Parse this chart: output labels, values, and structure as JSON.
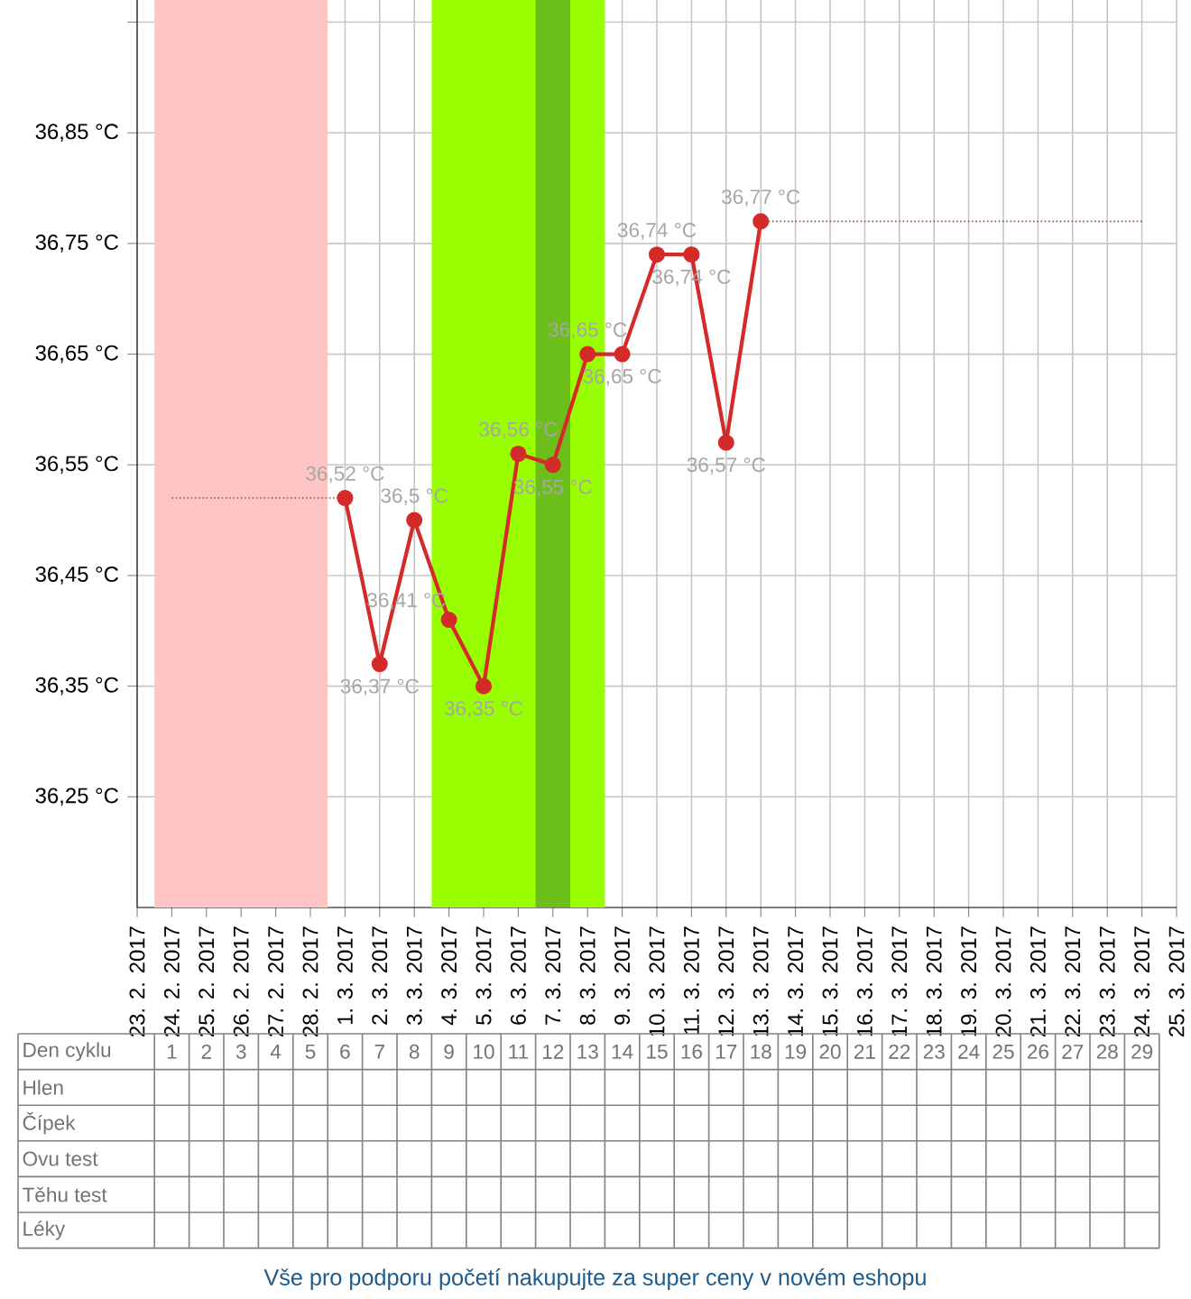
{
  "chart_data": {
    "type": "line",
    "categories": [
      "23. 2. 2017",
      "24. 2. 2017",
      "25. 2. 2017",
      "26. 2. 2017",
      "27. 2. 2017",
      "28. 2. 2017",
      "1. 3. 2017",
      "2. 3. 2017",
      "3. 3. 2017",
      "4. 3. 2017",
      "5. 3. 2017",
      "6. 3. 2017",
      "7. 3. 2017",
      "8. 3. 2017",
      "9. 3. 2017",
      "10. 3. 2017",
      "11. 3. 2017",
      "12. 3. 2017",
      "13. 3. 2017",
      "14. 3. 2017",
      "15. 3. 2017",
      "16. 3. 2017",
      "17. 3. 2017",
      "18. 3. 2017",
      "19. 3. 2017",
      "20. 3. 2017",
      "21. 3. 2017",
      "22. 3. 2017",
      "23. 3. 2017",
      "24. 3. 2017",
      "25. 3. 2017"
    ],
    "series": [
      {
        "color": "#a04848",
        "line_style": "dotted",
        "marker": "none",
        "values": [
          null,
          36.52,
          36.52,
          36.52,
          36.52,
          36.52,
          36.52,
          null,
          null,
          null,
          null,
          null,
          null,
          null,
          null,
          null,
          null,
          null,
          null,
          null,
          null,
          null,
          null,
          null,
          null,
          null,
          null,
          null,
          null,
          null,
          null
        ]
      },
      {
        "color": "#a04848",
        "line_style": "dotted",
        "marker": "none",
        "values": [
          null,
          null,
          null,
          null,
          null,
          null,
          null,
          null,
          null,
          null,
          null,
          null,
          null,
          null,
          null,
          null,
          null,
          null,
          36.77,
          36.77,
          36.77,
          36.77,
          36.77,
          36.77,
          36.77,
          36.77,
          36.77,
          36.77,
          36.77,
          36.77,
          null
        ]
      },
      {
        "color": "#d42a2a",
        "line_style": "solid",
        "marker": "circle",
        "values": [
          null,
          null,
          null,
          null,
          null,
          null,
          36.52,
          36.37,
          36.5,
          36.41,
          36.35,
          36.56,
          36.55,
          36.65,
          36.65,
          36.74,
          36.74,
          36.57,
          36.77,
          null,
          null,
          null,
          null,
          null,
          null,
          null,
          null,
          null,
          null,
          null,
          null
        ],
        "value_labels": [
          null,
          null,
          null,
          null,
          null,
          null,
          "36,52 °C",
          "36,37 °C",
          "36,5 °C",
          "36,41 °C",
          "36,35 °C",
          "36,56 °C",
          "36,55 °C",
          "36,65 °C",
          "36,65 °C",
          "36,74 °C",
          "36,74 °C",
          "36,57 °C",
          "36,77 °C",
          null,
          null,
          null,
          null,
          null,
          null,
          null,
          null,
          null,
          null,
          null,
          null
        ]
      }
    ],
    "ylim": [
      36.15,
      36.97
    ],
    "yticks": [
      {
        "value": 36.25,
        "label": "36,25 °C"
      },
      {
        "value": 36.35,
        "label": "36,35 °C"
      },
      {
        "value": 36.45,
        "label": "36,45 °C"
      },
      {
        "value": 36.55,
        "label": "36,55 °C"
      },
      {
        "value": 36.65,
        "label": "36,65 °C"
      },
      {
        "value": 36.75,
        "label": "36,75 °C"
      },
      {
        "value": 36.85,
        "label": "36,85 °C"
      },
      {
        "value": 36.95,
        "label": null
      }
    ],
    "grid": true,
    "bands": [
      {
        "axis": "x",
        "from": "24. 2. 2017",
        "to": "28. 2. 2017",
        "color": "#ffc4c4"
      },
      {
        "axis": "x",
        "from": "4. 3. 2017",
        "to": "8. 3. 2017",
        "color": "#99ff00"
      },
      {
        "axis": "x",
        "from": "7. 3. 2017",
        "to": "7. 3. 2017",
        "color": "#6cbf1a"
      }
    ],
    "annotations": [
      "Den cyklu",
      "Hlen",
      "Čípek",
      "Ovu test",
      "Těhu test",
      "Léky",
      "1",
      "2",
      "3",
      "4",
      "5",
      "6",
      "7",
      "8",
      "9",
      "10",
      "11",
      "12",
      "13",
      "14",
      "15",
      "16",
      "17",
      "18",
      "19",
      "20",
      "21",
      "22",
      "23",
      "24",
      "25",
      "26",
      "27",
      "28",
      "29",
      "Vše pro podporu početí nakupujte za super ceny v novém eshopu"
    ]
  }
}
